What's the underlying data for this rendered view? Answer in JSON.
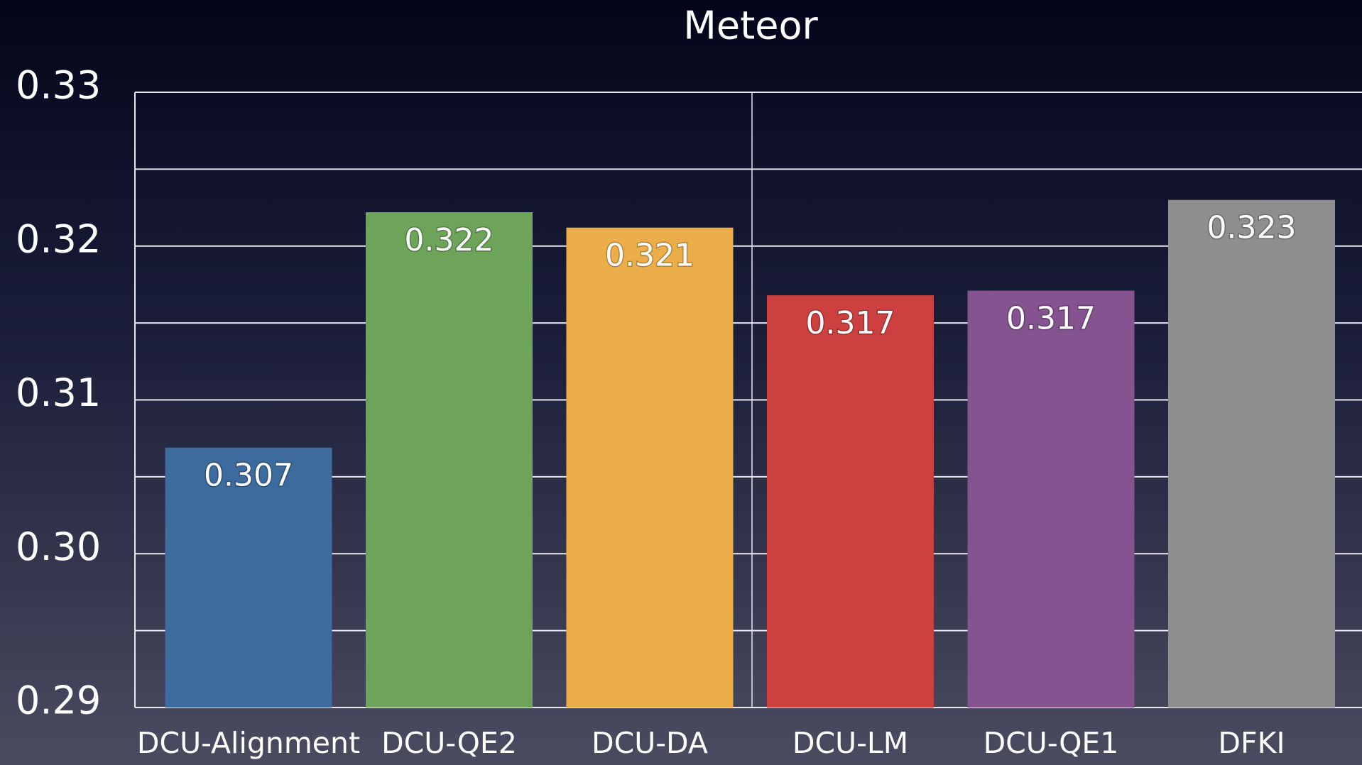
{
  "chart_data": {
    "type": "bar",
    "title": "Meteor",
    "categories": [
      "DCU-Alignment",
      "DCU-QE2",
      "DCU-DA",
      "DCU-LM",
      "DCU-QE1",
      "DFKI"
    ],
    "values": [
      0.3069,
      0.3222,
      0.3212,
      0.3168,
      0.3171,
      0.323
    ],
    "value_labels": [
      "0.307",
      "0.322",
      "0.321",
      "0.317",
      "0.317",
      "0.323"
    ],
    "colors": [
      "#3d6b9e",
      "#6ea45a",
      "#ecae4b",
      "#cc4140",
      "#845390",
      "#8e8e8e"
    ],
    "ylim": [
      0.29,
      0.33
    ],
    "yticks": [
      0.29,
      {
        "value": 0.3,
        "label": "0.30"
      },
      0.31,
      0.32,
      0.33
    ],
    "minor_yticks": [
      0.295,
      0.305,
      0.315,
      0.325
    ],
    "grid": true
  }
}
